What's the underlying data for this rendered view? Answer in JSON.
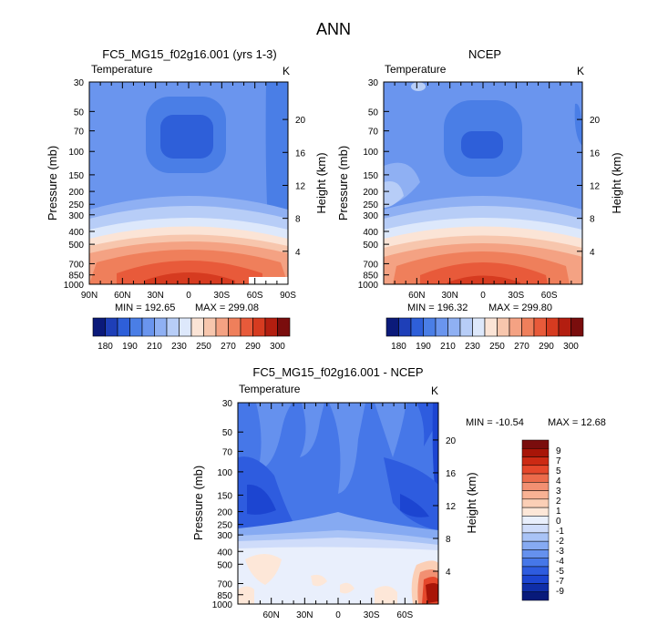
{
  "page_title": "ANN",
  "colors": {
    "diverging_temp": [
      "#0b1a7a",
      "#1e3fb8",
      "#2e5fd9",
      "#4a7ee6",
      "#6a95ee",
      "#8fb0f3",
      "#b7cdf7",
      "#dde8fb",
      "#fbe4d6",
      "#f7c6ad",
      "#f4a283",
      "#ef7f5b",
      "#e85a3a",
      "#d63b20",
      "#b31e10",
      "#7a0d0d"
    ],
    "diff_levels": [
      "#081a7a",
      "#0f2ea8",
      "#1c45d1",
      "#2e5cdf",
      "#4677e8",
      "#6591ee",
      "#86aaf2",
      "#a9c3f6",
      "#cfdcfa",
      "#e9effc",
      "#fde7d8",
      "#fbcfb6",
      "#f8b294",
      "#f29072",
      "#ec6b4b",
      "#e5472b",
      "#cc2a14",
      "#a81508",
      "#7a0d0d"
    ]
  },
  "chart_data": [
    {
      "type": "heatmap",
      "title": "FC5_MG15_f02g16.001 (yrs 1-3)",
      "subtitle_left": "Temperature",
      "subtitle_right": "K",
      "xlabel": "",
      "ylabel": "Pressure (mb)",
      "ylabel_right": "Height (km)",
      "x_ticks": [
        "90N",
        "60N",
        "30N",
        "0",
        "30S",
        "60S",
        "90S"
      ],
      "x_values": [
        90,
        60,
        30,
        0,
        -30,
        -60,
        -90
      ],
      "y_ticks": [
        "30",
        "50",
        "70",
        "100",
        "150",
        "200",
        "250",
        "300",
        "400",
        "500",
        "700",
        "850",
        "1000"
      ],
      "y_values": [
        30,
        50,
        70,
        100,
        150,
        200,
        250,
        300,
        400,
        500,
        700,
        850,
        1000
      ],
      "height_ticks": [
        "20",
        "16",
        "12",
        "8",
        "4"
      ],
      "height_values": [
        20,
        16,
        12,
        8,
        4
      ],
      "xlim": [
        90,
        -90
      ],
      "ylim": [
        1000,
        30
      ],
      "min_label": "MIN = 192.65",
      "max_label": "MAX = 299.08",
      "levels": [
        180,
        190,
        200,
        210,
        220,
        230,
        240,
        250,
        260,
        270,
        280,
        290,
        300
      ],
      "colorbar_labels": [
        "180",
        "190",
        "210",
        "230",
        "250",
        "270",
        "290",
        "300"
      ]
    },
    {
      "type": "heatmap",
      "title": "NCEP",
      "subtitle_left": "Temperature",
      "subtitle_right": "K",
      "ylabel": "Pressure (mb)",
      "ylabel_right": "Height (km)",
      "x_ticks": [
        "60N",
        "30N",
        "0",
        "30S",
        "60S"
      ],
      "x_values": [
        60,
        30,
        0,
        -30,
        -60
      ],
      "y_ticks": [
        "30",
        "50",
        "70",
        "100",
        "150",
        "200",
        "250",
        "300",
        "400",
        "500",
        "700",
        "850",
        "1000"
      ],
      "y_values": [
        30,
        50,
        70,
        100,
        150,
        200,
        250,
        300,
        400,
        500,
        700,
        850,
        1000
      ],
      "height_ticks": [
        "20",
        "16",
        "12",
        "8",
        "4"
      ],
      "height_values": [
        20,
        16,
        12,
        8,
        4
      ],
      "xlim": [
        90,
        -90
      ],
      "ylim": [
        1000,
        30
      ],
      "min_label": "MIN = 196.32",
      "max_label": "MAX = 299.80",
      "colorbar_labels": [
        "180",
        "190",
        "210",
        "230",
        "250",
        "270",
        "290",
        "300"
      ]
    },
    {
      "type": "heatmap",
      "title": "FC5_MG15_f02g16.001 - NCEP",
      "subtitle_left": "Temperature",
      "subtitle_right": "K",
      "ylabel": "Pressure (mb)",
      "ylabel_right": "Height (km)",
      "x_ticks": [
        "60N",
        "30N",
        "0",
        "30S",
        "60S"
      ],
      "x_values": [
        60,
        30,
        0,
        -30,
        -60
      ],
      "y_ticks": [
        "30",
        "50",
        "70",
        "100",
        "150",
        "200",
        "250",
        "300",
        "400",
        "500",
        "700",
        "850",
        "1000"
      ],
      "y_values": [
        30,
        50,
        70,
        100,
        150,
        200,
        250,
        300,
        400,
        500,
        700,
        850,
        1000
      ],
      "height_ticks": [
        "20",
        "16",
        "12",
        "8",
        "4"
      ],
      "height_values": [
        20,
        16,
        12,
        8,
        4
      ],
      "xlim": [
        90,
        -90
      ],
      "ylim": [
        1000,
        30
      ],
      "min_label": "MIN = -10.54",
      "max_label": "MAX =  12.68",
      "levels": [
        -9,
        -7,
        -5,
        -4,
        -3,
        -2,
        -1,
        0,
        1,
        2,
        3,
        4,
        5,
        7,
        9
      ],
      "colorbar_labels": [
        "9",
        "7",
        "5",
        "4",
        "3",
        "2",
        "1",
        "0",
        "-1",
        "-2",
        "-3",
        "-4",
        "-5",
        "-7",
        "-9"
      ]
    }
  ]
}
